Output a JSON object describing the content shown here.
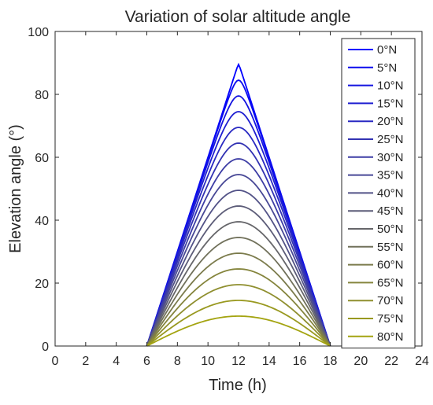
{
  "chart_data": {
    "type": "line",
    "title": "Variation of solar altitude angle",
    "xlabel": "Time (h)",
    "ylabel": "Elevation angle (°)",
    "xlim": [
      0,
      24
    ],
    "ylim": [
      0,
      100
    ],
    "xticks": [
      0,
      2,
      4,
      6,
      8,
      10,
      12,
      14,
      16,
      18,
      20,
      22,
      24
    ],
    "yticks": [
      0,
      20,
      40,
      60,
      80,
      100
    ],
    "grid": false,
    "legend_position": "right",
    "x_range": [
      6,
      18
    ],
    "series": [
      {
        "name": "0°N",
        "peak": 89.5,
        "color": "#0000ff"
      },
      {
        "name": "5°N",
        "peak": 84.5,
        "color": "#0a0aee"
      },
      {
        "name": "10°N",
        "peak": 79.5,
        "color": "#1414e0"
      },
      {
        "name": "15°N",
        "peak": 74.5,
        "color": "#1f1fd1"
      },
      {
        "name": "20°N",
        "peak": 69.5,
        "color": "#2929c2"
      },
      {
        "name": "25°N",
        "peak": 64.5,
        "color": "#3333b3"
      },
      {
        "name": "30°N",
        "peak": 59.5,
        "color": "#3d3da5"
      },
      {
        "name": "35°N",
        "peak": 54.5,
        "color": "#484896"
      },
      {
        "name": "40°N",
        "peak": 49.5,
        "color": "#525287"
      },
      {
        "name": "45°N",
        "peak": 44.5,
        "color": "#5c5c78"
      },
      {
        "name": "50°N",
        "peak": 39.5,
        "color": "#66666a"
      },
      {
        "name": "55°N",
        "peak": 34.5,
        "color": "#71715b"
      },
      {
        "name": "60°N",
        "peak": 29.5,
        "color": "#7b7b4c"
      },
      {
        "name": "65°N",
        "peak": 24.5,
        "color": "#85853d"
      },
      {
        "name": "70°N",
        "peak": 19.5,
        "color": "#8f8f2f"
      },
      {
        "name": "75°N",
        "peak": 14.5,
        "color": "#999920"
      },
      {
        "name": "80°N",
        "peak": 9.5,
        "color": "#a4a411"
      }
    ]
  }
}
